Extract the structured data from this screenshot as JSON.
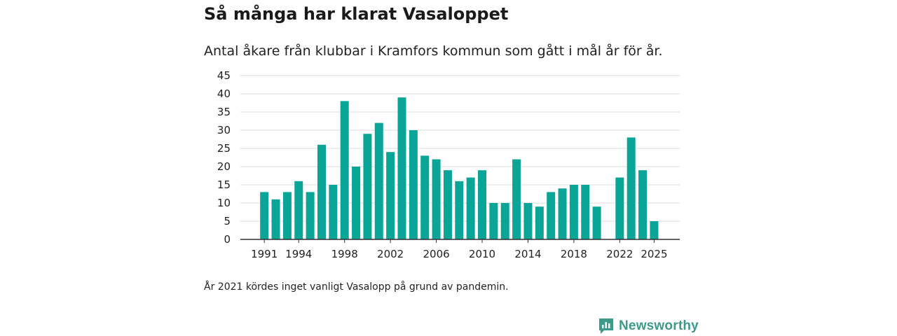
{
  "header": {
    "title": "Så många har klarat Vasaloppet",
    "subtitle": "Antal åkare från klubbar i Kramfors kommun som gått i mål år för år."
  },
  "footnote": "År 2021 kördes inget vanligt Vasalopp på grund av pandemin.",
  "brand": {
    "name": "Newsworthy",
    "icon": "newsworthy-logo-icon",
    "color": "#3d9a8b"
  },
  "colors": {
    "bar": "#0aa596",
    "grid": "#dddddd",
    "axis": "#333333"
  },
  "chart_data": {
    "type": "bar",
    "title": "Så många har klarat Vasaloppet",
    "xlabel": "",
    "ylabel": "",
    "ylim": [
      0,
      45
    ],
    "yticks": [
      0,
      5,
      10,
      15,
      20,
      25,
      30,
      35,
      40,
      45
    ],
    "xticks": [
      "1991",
      "1994",
      "1998",
      "2002",
      "2006",
      "2010",
      "2014",
      "2018",
      "2022",
      "2025"
    ],
    "grid": true,
    "categories": [
      "1991",
      "1992",
      "1993",
      "1994",
      "1995",
      "1996",
      "1997",
      "1998",
      "1999",
      "2000",
      "2001",
      "2002",
      "2003",
      "2004",
      "2005",
      "2006",
      "2007",
      "2008",
      "2009",
      "2010",
      "2011",
      "2012",
      "2013",
      "2014",
      "2015",
      "2016",
      "2017",
      "2018",
      "2019",
      "2020",
      "2021",
      "2022",
      "2023",
      "2024",
      "2025"
    ],
    "values": [
      13,
      11,
      13,
      16,
      13,
      26,
      15,
      38,
      20,
      29,
      32,
      24,
      39,
      30,
      23,
      22,
      19,
      16,
      17,
      19,
      10,
      10,
      22,
      10,
      9,
      13,
      14,
      15,
      15,
      9,
      null,
      17,
      28,
      19,
      5
    ]
  }
}
